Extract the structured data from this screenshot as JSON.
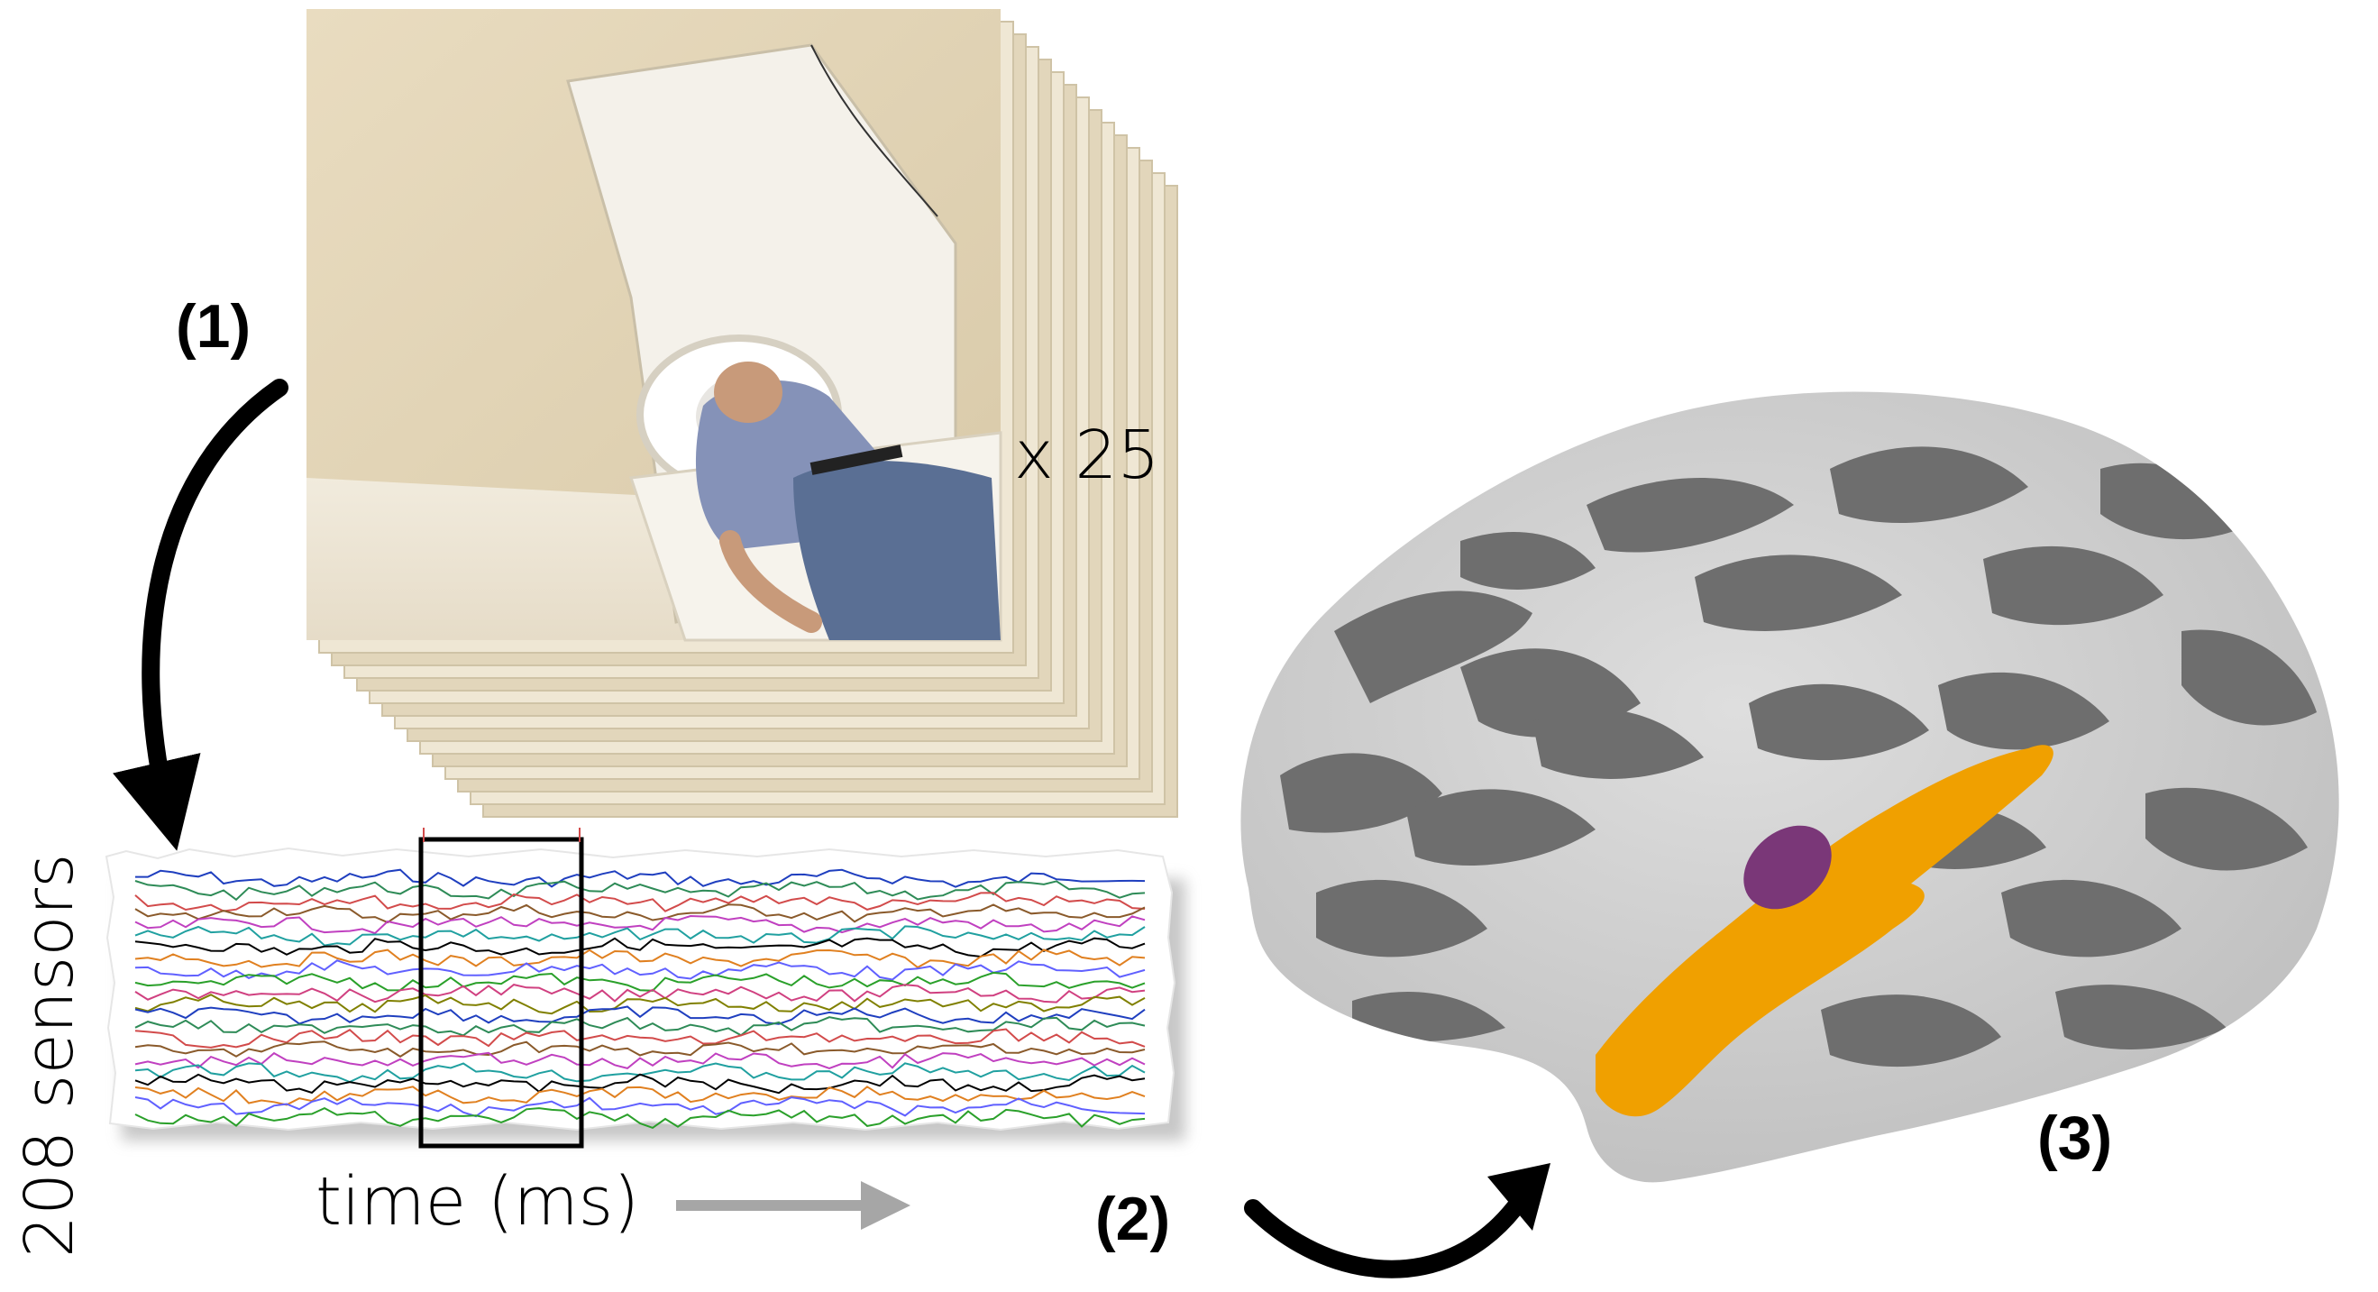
{
  "labels": {
    "step1": "(1)",
    "step2": "(2)",
    "step3": "(3)",
    "multiplier": "x 25",
    "sensors_axis": "208 sensors",
    "time_axis": "time (ms)"
  },
  "colors": {
    "background": "#ffffff",
    "arrow": "#000000",
    "time_arrow": "#a6a6a6",
    "cortex_gyri": "#d8d8d8",
    "cortex_sulci": "#6e6e6e",
    "region_orange": "#f0a000",
    "region_purple": "#7a3778",
    "window_box": "#000000"
  },
  "icons": {
    "meg_scanner": "meg-scanner-photo-icon",
    "brain": "inflated-cortex-icon",
    "arrow": "curved-arrow-icon"
  },
  "meg_traces": {
    "sensor_count_label": "208 sensors",
    "trace_colors": [
      "#1f3fbf",
      "#2e8b57",
      "#d24b4b",
      "#8a5a2b",
      "#c040c0",
      "#20a0a0",
      "#000000",
      "#e08020",
      "#6060ff",
      "#2aa02a",
      "#d04080",
      "#808000"
    ]
  }
}
